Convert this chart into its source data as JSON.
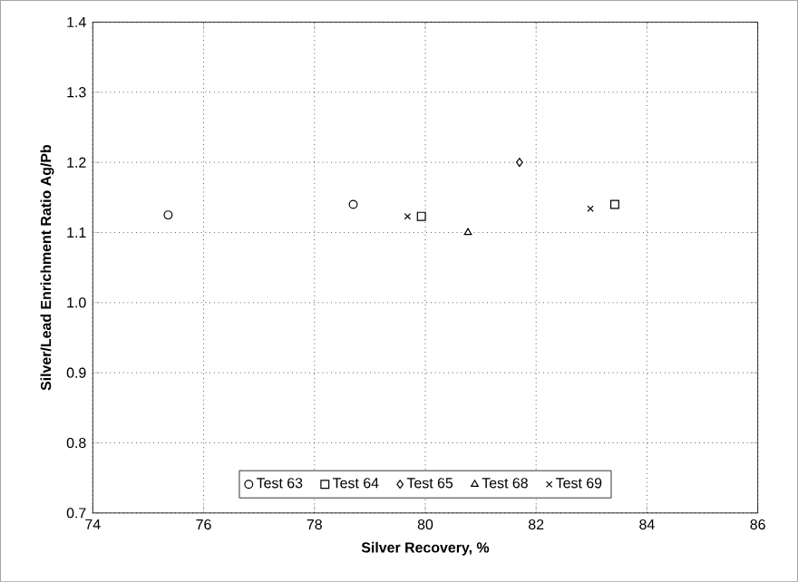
{
  "chart_data": {
    "type": "scatter",
    "xlabel": "Silver Recovery, %",
    "ylabel": "Silver/Lead Enrichment Ratio Ag/Pb",
    "xlim": [
      74,
      86
    ],
    "xticks": [
      74,
      76,
      78,
      80,
      82,
      84,
      86
    ],
    "ylim": [
      0.7,
      1.4
    ],
    "yticks": [
      0.7,
      0.8,
      0.9,
      {
        "value": 1.0,
        "label": "1.0"
      },
      1.1,
      1.2,
      1.3,
      1.4
    ],
    "grid": true,
    "legend": "bottom",
    "series": [
      {
        "name": "Test 63",
        "color": "#000000",
        "marker": "circle",
        "x": [
          75.36,
          78.7
        ],
        "values": [
          1.125,
          1.14
        ]
      },
      {
        "name": "Test 64",
        "color": "#000000",
        "marker": "square",
        "x": [
          79.93,
          83.42
        ],
        "values": [
          1.123,
          1.14
        ]
      },
      {
        "name": "Test 65",
        "color": "#000000",
        "marker": "diamond",
        "x": [
          81.7
        ],
        "values": [
          1.2
        ]
      },
      {
        "name": "Test 68",
        "color": "#000000",
        "marker": "triangle",
        "x": [
          80.77
        ],
        "values": [
          1.1
        ]
      },
      {
        "name": "Test 69",
        "color": "#000000",
        "marker": "cross",
        "x": [
          79.68,
          82.98
        ],
        "values": [
          1.123,
          1.134
        ]
      }
    ]
  }
}
